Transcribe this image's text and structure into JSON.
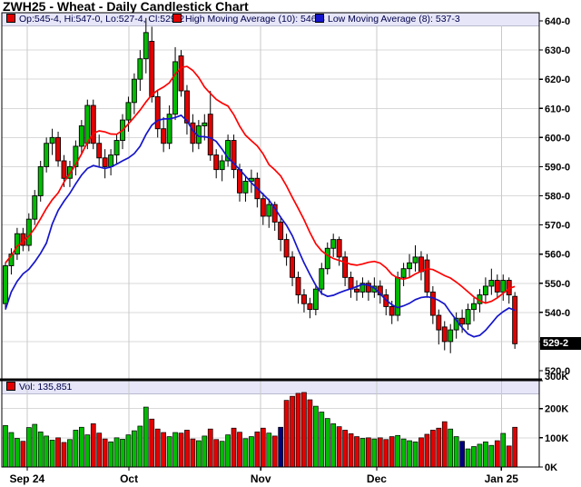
{
  "header": {
    "title": "ZWH25 - Wheat - Daily Candlestick Chart"
  },
  "legend": {
    "ohlc_label": "Op:545-4, Hi:547-0, Lo:527-4, Cl:529-2",
    "ma_high_label": "High Moving Average (10): 546-3",
    "ma_low_label": "Low Moving Average (8): 537-3"
  },
  "volume_panel": {
    "header_label": "Vol: 135,851"
  },
  "chart_data": {
    "type": "candlestick",
    "title": "ZWH25 - Wheat - Daily Candlestick Chart",
    "subtitle": "",
    "legend_position": "top",
    "grid": true,
    "last_bar": {
      "open": "545-4",
      "high": "547-0",
      "low": "527-4",
      "close": "529-2",
      "volume": "135,851"
    },
    "price_marker": {
      "label": "529-2",
      "value": 529.25,
      "replaces_tick": 530
    },
    "ma_high": {
      "name": "High Moving Average",
      "period": 10,
      "current": "546-3",
      "color": "#ff0000"
    },
    "ma_low": {
      "name": "Low Moving Average",
      "period": 8,
      "current": "537-3",
      "color": "#1515cc"
    },
    "y_axis": {
      "min": 520,
      "max": 640,
      "tick_step": 10,
      "ticks": [
        {
          "v": 640,
          "label": "640-0"
        },
        {
          "v": 630,
          "label": "630-0"
        },
        {
          "v": 620,
          "label": "620-0"
        },
        {
          "v": 610,
          "label": "610-0"
        },
        {
          "v": 600,
          "label": "600-0"
        },
        {
          "v": 590,
          "label": "590-0"
        },
        {
          "v": 580,
          "label": "580-0"
        },
        {
          "v": 570,
          "label": "570-0"
        },
        {
          "v": 560,
          "label": "560-0"
        },
        {
          "v": 550,
          "label": "550-0"
        },
        {
          "v": 540,
          "label": "540-0"
        },
        {
          "v": 530,
          "label": "530-0"
        },
        {
          "v": 520,
          "label": "520-0"
        }
      ]
    },
    "volume_axis": {
      "min": 0,
      "max": 300,
      "ticks": [
        {
          "v": 300,
          "label": "300K"
        },
        {
          "v": 200,
          "label": "200K"
        },
        {
          "v": 100,
          "label": "100K"
        },
        {
          "v": 0,
          "label": "0K"
        }
      ]
    },
    "x_axis": {
      "month_ticks": [
        {
          "label": "Sep 24",
          "index": 3.7
        },
        {
          "label": "Oct",
          "index": 21.1
        },
        {
          "label": "Nov",
          "index": 43.6
        },
        {
          "label": "Dec",
          "index": 63.4
        },
        {
          "label": "Jan 25",
          "index": 84.7
        }
      ]
    },
    "colors": {
      "up": "#00bc00",
      "down": "#e40000",
      "wick": "#000000",
      "navy_volume": "#000080",
      "grid_h": "#d9d9d9",
      "grid_v": "#c9c9c9",
      "band_bg": "#e6e6f8",
      "band_text": "#00004b",
      "marker_bg": "#000000",
      "marker_text": "#ffffff"
    },
    "candles": [
      [
        543,
        557,
        541,
        556
      ],
      [
        556,
        562,
        553,
        560
      ],
      [
        560,
        569,
        558,
        567
      ],
      [
        567,
        569,
        561,
        563
      ],
      [
        563,
        574,
        561,
        572
      ],
      [
        572,
        582,
        570,
        580
      ],
      [
        580,
        592,
        578,
        590
      ],
      [
        590,
        600,
        588,
        598
      ],
      [
        598,
        603,
        594,
        600
      ],
      [
        600,
        602,
        590,
        592
      ],
      [
        592,
        594,
        583,
        586
      ],
      [
        586,
        592,
        583,
        590
      ],
      [
        590,
        599,
        587,
        597
      ],
      [
        597,
        606,
        594,
        604
      ],
      [
        598,
        613,
        596,
        611
      ],
      [
        611,
        613,
        596,
        598
      ],
      [
        598,
        601,
        590,
        593
      ],
      [
        593,
        596,
        586,
        590
      ],
      [
        590,
        596,
        587,
        594
      ],
      [
        594,
        601,
        591,
        599
      ],
      [
        599,
        608,
        596,
        606
      ],
      [
        606,
        614,
        602,
        612
      ],
      [
        612,
        622,
        608,
        620
      ],
      [
        620,
        630,
        616,
        627
      ],
      [
        627,
        641,
        622,
        636
      ],
      [
        633,
        638,
        612,
        614
      ],
      [
        614,
        616,
        600,
        603
      ],
      [
        603,
        607,
        595,
        598
      ],
      [
        598,
        611,
        596,
        608
      ],
      [
        608,
        631,
        606,
        626
      ],
      [
        628,
        630,
        614,
        616
      ],
      [
        616,
        618,
        601,
        605
      ],
      [
        605,
        608,
        595,
        598
      ],
      [
        598,
        606,
        596,
        604
      ],
      [
        604,
        608,
        599,
        605
      ],
      [
        608,
        616,
        592,
        594
      ],
      [
        594,
        596,
        586,
        589
      ],
      [
        589,
        594,
        585,
        592
      ],
      [
        592,
        601,
        590,
        599
      ],
      [
        599,
        601,
        586,
        589
      ],
      [
        589,
        591,
        578,
        581
      ],
      [
        581,
        587,
        578,
        585
      ],
      [
        585,
        589,
        581,
        586
      ],
      [
        586,
        588,
        576,
        579
      ],
      [
        579,
        581,
        570,
        573
      ],
      [
        573,
        579,
        569,
        577
      ],
      [
        577,
        578,
        568,
        571
      ],
      [
        571,
        573,
        561,
        565
      ],
      [
        565,
        567,
        556,
        559
      ],
      [
        559,
        561,
        549,
        552
      ],
      [
        552,
        554,
        543,
        546
      ],
      [
        546,
        548,
        540,
        543
      ],
      [
        543,
        545,
        538,
        541
      ],
      [
        541,
        549,
        539,
        548
      ],
      [
        548,
        557,
        546,
        555
      ],
      [
        555,
        564,
        553,
        562
      ],
      [
        562,
        567,
        559,
        565
      ],
      [
        565,
        566,
        556,
        559
      ],
      [
        559,
        561,
        549,
        552
      ],
      [
        552,
        554,
        545,
        548
      ],
      [
        548,
        551,
        544,
        547
      ],
      [
        547,
        552,
        545,
        550
      ],
      [
        550,
        551,
        544,
        547
      ],
      [
        547,
        552,
        545,
        549
      ],
      [
        549,
        551,
        543,
        546
      ],
      [
        546,
        548,
        539,
        542
      ],
      [
        542,
        544,
        536,
        539
      ],
      [
        539,
        554,
        537,
        552
      ],
      [
        552,
        557,
        549,
        555
      ],
      [
        555,
        560,
        552,
        557
      ],
      [
        557,
        563,
        554,
        559
      ],
      [
        559,
        561,
        551,
        554
      ],
      [
        558,
        560,
        545,
        547
      ],
      [
        547,
        549,
        536,
        539
      ],
      [
        539,
        541,
        529,
        534
      ],
      [
        535,
        537,
        527,
        530
      ],
      [
        530,
        536,
        526,
        534
      ],
      [
        534,
        540,
        531,
        538
      ],
      [
        538,
        541,
        533,
        536
      ],
      [
        536,
        543,
        534,
        541
      ],
      [
        541,
        545,
        537,
        543
      ],
      [
        543,
        548,
        540,
        546
      ],
      [
        546,
        552,
        543,
        549
      ],
      [
        549,
        555,
        546,
        551
      ],
      [
        551,
        553,
        545,
        547
      ],
      [
        547,
        553,
        544,
        551
      ],
      [
        551,
        552,
        543,
        546
      ],
      [
        545.5,
        547,
        527.5,
        529.25
      ]
    ],
    "volumes_k": [
      142,
      118,
      98,
      88,
      135,
      146,
      120,
      106,
      92,
      100,
      84,
      94,
      126,
      136,
      110,
      148,
      116,
      96,
      86,
      100,
      95,
      110,
      124,
      140,
      205,
      164,
      130,
      118,
      104,
      118,
      116,
      126,
      96,
      90,
      106,
      130,
      94,
      88,
      110,
      133,
      119,
      97,
      104,
      120,
      133,
      116,
      106,
      136,
      228,
      242,
      252,
      255,
      230,
      208,
      188,
      166,
      148,
      138,
      126,
      114,
      104,
      98,
      100,
      96,
      100,
      94,
      104,
      108,
      96,
      90,
      86,
      100,
      112,
      126,
      133,
      155,
      130,
      104,
      88,
      62,
      70,
      78,
      86,
      74,
      90,
      115,
      72,
      136
    ],
    "navy_volume_indices": [
      47,
      78
    ]
  }
}
